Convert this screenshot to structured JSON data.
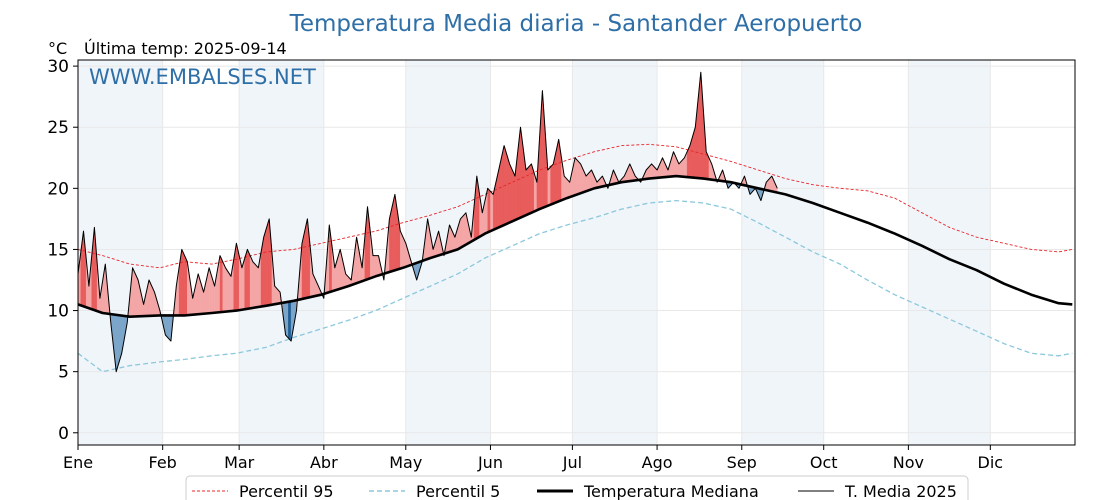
{
  "title": "Temperatura Media diaria - Santander Aeropuerto",
  "unit_label": "°C",
  "last_temp_label": "Última temp: 2025-09-14",
  "watermark": "WWW.EMBALSES.NET",
  "colors": {
    "title": "#2f6fa7",
    "p95": "#e8262a",
    "p5": "#8cc8dc",
    "median": "#000000",
    "actual": "#000000",
    "above_fill": "#f4a6a6",
    "above_fill_strong": "#e85c5c",
    "below_fill": "#7ba5c9",
    "below_fill_strong": "#1f5d94",
    "band": "#f0f5fa"
  },
  "legend": [
    {
      "label": "Percentil 95",
      "style": "p95"
    },
    {
      "label": "Percentil 5",
      "style": "p5"
    },
    {
      "label": "Temperatura Mediana",
      "style": "median"
    },
    {
      "label": "T. Media 2025",
      "style": "actual"
    }
  ],
  "chart_data": {
    "type": "line",
    "x_unit": "day of year",
    "x_ticks": [
      {
        "day": 1,
        "label": "Ene"
      },
      {
        "day": 32,
        "label": "Feb"
      },
      {
        "day": 60,
        "label": "Mar"
      },
      {
        "day": 91,
        "label": "Abr"
      },
      {
        "day": 121,
        "label": "May"
      },
      {
        "day": 152,
        "label": "Jun"
      },
      {
        "day": 182,
        "label": "Jul"
      },
      {
        "day": 213,
        "label": "Ago"
      },
      {
        "day": 244,
        "label": "Sep"
      },
      {
        "day": 274,
        "label": "Oct"
      },
      {
        "day": 305,
        "label": "Nov"
      },
      {
        "day": 335,
        "label": "Dic"
      }
    ],
    "xlim": [
      1,
      366
    ],
    "ylim": [
      -1,
      30.5
    ],
    "y_ticks": [
      0,
      5,
      10,
      15,
      20,
      25,
      30
    ],
    "shaded_months": [
      [
        1,
        32
      ],
      [
        60,
        91
      ],
      [
        121,
        152
      ],
      [
        182,
        213
      ],
      [
        244,
        274
      ],
      [
        305,
        335
      ]
    ],
    "grid": true,
    "series": [
      {
        "name": "Percentil 95",
        "style": "p95",
        "x": [
          1,
          10,
          20,
          31,
          40,
          50,
          59,
          70,
          80,
          90,
          100,
          110,
          120,
          130,
          140,
          150,
          160,
          170,
          180,
          190,
          200,
          210,
          220,
          230,
          240,
          250,
          260,
          270,
          280,
          290,
          300,
          310,
          320,
          330,
          340,
          350,
          360,
          365
        ],
        "values": [
          15.0,
          14.5,
          13.8,
          13.5,
          14.0,
          13.8,
          14.2,
          14.8,
          15.0,
          15.5,
          16.0,
          16.5,
          17.2,
          17.8,
          18.5,
          19.5,
          20.5,
          21.5,
          22.3,
          23.0,
          23.5,
          23.6,
          23.4,
          22.8,
          22.2,
          21.5,
          20.8,
          20.3,
          20.0,
          19.8,
          19.2,
          18.0,
          16.8,
          16.0,
          15.5,
          15.0,
          14.8,
          15.0
        ]
      },
      {
        "name": "Percentil 5",
        "style": "p5",
        "x": [
          1,
          10,
          20,
          31,
          40,
          50,
          59,
          70,
          80,
          90,
          100,
          110,
          120,
          130,
          140,
          150,
          160,
          170,
          180,
          190,
          200,
          210,
          220,
          230,
          240,
          250,
          260,
          270,
          280,
          290,
          300,
          310,
          320,
          330,
          340,
          350,
          360,
          365
        ],
        "values": [
          6.5,
          5.0,
          5.5,
          5.8,
          6.0,
          6.3,
          6.5,
          7.0,
          7.8,
          8.5,
          9.2,
          10.0,
          11.0,
          12.0,
          13.0,
          14.3,
          15.3,
          16.3,
          17.0,
          17.6,
          18.3,
          18.8,
          19.0,
          18.8,
          18.3,
          17.2,
          16.0,
          14.8,
          13.8,
          12.5,
          11.3,
          10.3,
          9.3,
          8.3,
          7.3,
          6.5,
          6.3,
          6.5
        ]
      },
      {
        "name": "Temperatura Mediana",
        "style": "median",
        "x": [
          1,
          10,
          20,
          31,
          40,
          50,
          59,
          70,
          80,
          90,
          100,
          110,
          120,
          130,
          140,
          150,
          160,
          170,
          180,
          190,
          200,
          210,
          220,
          230,
          240,
          250,
          260,
          270,
          280,
          290,
          300,
          310,
          320,
          330,
          340,
          350,
          360,
          365
        ],
        "values": [
          10.5,
          9.8,
          9.5,
          9.6,
          9.6,
          9.8,
          10.0,
          10.4,
          10.8,
          11.3,
          12.0,
          12.8,
          13.5,
          14.3,
          15.0,
          16.3,
          17.3,
          18.3,
          19.2,
          20.0,
          20.5,
          20.8,
          21.0,
          20.8,
          20.5,
          20.0,
          19.5,
          18.8,
          18.0,
          17.2,
          16.3,
          15.3,
          14.2,
          13.3,
          12.2,
          11.3,
          10.6,
          10.5
        ]
      },
      {
        "name": "T. Media 2025",
        "style": "actual",
        "x": [
          1,
          3,
          5,
          7,
          9,
          11,
          13,
          15,
          17,
          19,
          21,
          23,
          25,
          27,
          29,
          31,
          33,
          35,
          37,
          39,
          41,
          43,
          45,
          47,
          49,
          51,
          53,
          55,
          57,
          59,
          61,
          63,
          65,
          67,
          69,
          71,
          73,
          75,
          77,
          79,
          81,
          83,
          85,
          87,
          89,
          91,
          93,
          95,
          97,
          99,
          101,
          103,
          105,
          107,
          109,
          111,
          113,
          115,
          117,
          119,
          121,
          123,
          125,
          127,
          129,
          131,
          133,
          135,
          137,
          139,
          141,
          143,
          145,
          147,
          149,
          151,
          153,
          155,
          157,
          159,
          161,
          163,
          165,
          167,
          169,
          171,
          173,
          175,
          177,
          179,
          181,
          183,
          185,
          187,
          189,
          191,
          193,
          195,
          197,
          199,
          201,
          203,
          205,
          207,
          209,
          211,
          213,
          215,
          217,
          219,
          221,
          223,
          225,
          227,
          229,
          231,
          233,
          235,
          237,
          239,
          241,
          243,
          245,
          247,
          249,
          251,
          253,
          255,
          257
        ],
        "values": [
          13.0,
          16.5,
          12.0,
          16.8,
          11.0,
          13.8,
          9.0,
          5.0,
          6.5,
          9.0,
          13.5,
          12.5,
          10.5,
          12.5,
          11.5,
          10.0,
          8.0,
          7.5,
          12.0,
          15.0,
          14.0,
          11.0,
          13.0,
          11.5,
          13.5,
          12.0,
          14.5,
          13.5,
          12.8,
          15.5,
          13.5,
          15.0,
          14.0,
          13.5,
          16.0,
          17.5,
          12.0,
          11.5,
          8.0,
          7.5,
          10.0,
          15.5,
          17.5,
          13.0,
          12.0,
          11.0,
          17.0,
          13.5,
          15.0,
          13.0,
          12.5,
          16.0,
          13.5,
          18.5,
          14.5,
          14.5,
          12.5,
          17.5,
          19.5,
          16.5,
          15.5,
          14.0,
          12.5,
          14.0,
          17.5,
          15.0,
          16.5,
          14.5,
          17.0,
          16.0,
          17.5,
          18.0,
          16.0,
          21.0,
          18.0,
          20.0,
          19.5,
          21.5,
          23.5,
          22.0,
          21.0,
          25.0,
          21.5,
          22.0,
          20.5,
          28.0,
          21.5,
          22.0,
          24.0,
          21.0,
          20.5,
          22.5,
          22.0,
          21.0,
          21.5,
          20.5,
          21.0,
          20.0,
          21.5,
          20.5,
          21.0,
          22.0,
          21.0,
          20.5,
          21.5,
          22.0,
          21.5,
          22.5,
          21.5,
          23.0,
          22.0,
          22.5,
          23.5,
          25.0,
          29.5,
          23.0,
          22.0,
          20.5,
          21.5,
          20.0,
          20.5,
          20.0,
          21.0,
          19.5,
          20.0,
          19.0,
          20.5,
          21.0,
          20.0
        ]
      }
    ]
  }
}
